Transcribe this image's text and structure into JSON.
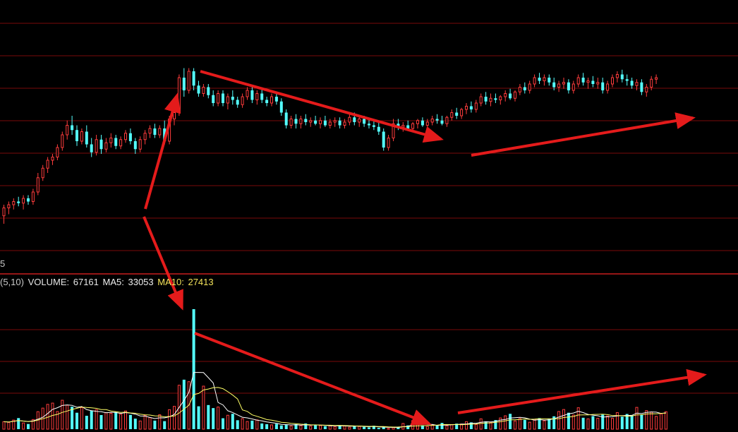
{
  "corner_label": "5",
  "volume_legend": {
    "params": "(5,10)",
    "volume_label": "VOLUME:",
    "volume_value": "67161",
    "ma5_label": "MA5:",
    "ma5_value": "33053",
    "ma10_label": "MA10:",
    "ma10_value": "27413"
  },
  "colors": {
    "background": "#000000",
    "up_candle": "#ff3c3c",
    "down_candle": "#54ffff",
    "grid": "#7a0a0a",
    "divider": "#c81e1e",
    "ma5_line": "#ffffff",
    "ma10_line": "#ffff66",
    "annotation_arrow": "#e41b1b"
  },
  "chart_data": [
    {
      "type": "candlestick",
      "panel": "price",
      "grid": true,
      "price_range": [
        4.4,
        6.0
      ],
      "candles": [
        {
          "o": 4.73,
          "h": 4.8,
          "l": 4.68,
          "c": 4.78
        },
        {
          "o": 4.78,
          "h": 4.82,
          "l": 4.74,
          "c": 4.8
        },
        {
          "o": 4.8,
          "h": 4.84,
          "l": 4.77,
          "c": 4.82
        },
        {
          "o": 4.82,
          "h": 4.85,
          "l": 4.79,
          "c": 4.81
        },
        {
          "o": 4.81,
          "h": 4.86,
          "l": 4.77,
          "c": 4.84
        },
        {
          "o": 4.84,
          "h": 4.86,
          "l": 4.8,
          "c": 4.82
        },
        {
          "o": 4.82,
          "h": 4.9,
          "l": 4.8,
          "c": 4.88
        },
        {
          "o": 4.88,
          "h": 5.0,
          "l": 4.86,
          "c": 4.97
        },
        {
          "o": 4.97,
          "h": 5.05,
          "l": 4.95,
          "c": 5.03
        },
        {
          "o": 5.03,
          "h": 5.1,
          "l": 5.0,
          "c": 5.08
        },
        {
          "o": 5.08,
          "h": 5.12,
          "l": 5.05,
          "c": 5.1
        },
        {
          "o": 5.1,
          "h": 5.18,
          "l": 5.08,
          "c": 5.16
        },
        {
          "o": 5.16,
          "h": 5.26,
          "l": 5.14,
          "c": 5.24
        },
        {
          "o": 5.24,
          "h": 5.33,
          "l": 5.21,
          "c": 5.3
        },
        {
          "o": 5.3,
          "h": 5.36,
          "l": 5.24,
          "c": 5.27
        },
        {
          "o": 5.27,
          "h": 5.3,
          "l": 5.17,
          "c": 5.2
        },
        {
          "o": 5.2,
          "h": 5.28,
          "l": 5.18,
          "c": 5.26
        },
        {
          "o": 5.26,
          "h": 5.3,
          "l": 5.16,
          "c": 5.18
        },
        {
          "o": 5.18,
          "h": 5.22,
          "l": 5.1,
          "c": 5.13
        },
        {
          "o": 5.13,
          "h": 5.24,
          "l": 5.11,
          "c": 5.21
        },
        {
          "o": 5.21,
          "h": 5.24,
          "l": 5.12,
          "c": 5.15
        },
        {
          "o": 5.15,
          "h": 5.22,
          "l": 5.13,
          "c": 5.19
        },
        {
          "o": 5.19,
          "h": 5.25,
          "l": 5.16,
          "c": 5.22
        },
        {
          "o": 5.22,
          "h": 5.24,
          "l": 5.15,
          "c": 5.17
        },
        {
          "o": 5.17,
          "h": 5.23,
          "l": 5.15,
          "c": 5.21
        },
        {
          "o": 5.21,
          "h": 5.27,
          "l": 5.19,
          "c": 5.25
        },
        {
          "o": 5.25,
          "h": 5.28,
          "l": 5.18,
          "c": 5.2
        },
        {
          "o": 5.2,
          "h": 5.22,
          "l": 5.12,
          "c": 5.15
        },
        {
          "o": 5.15,
          "h": 5.23,
          "l": 5.13,
          "c": 5.21
        },
        {
          "o": 5.21,
          "h": 5.27,
          "l": 5.18,
          "c": 5.25
        },
        {
          "o": 5.25,
          "h": 5.3,
          "l": 5.22,
          "c": 5.28
        },
        {
          "o": 5.28,
          "h": 5.31,
          "l": 5.22,
          "c": 5.24
        },
        {
          "o": 5.24,
          "h": 5.3,
          "l": 5.22,
          "c": 5.28
        },
        {
          "o": 5.28,
          "h": 5.33,
          "l": 5.18,
          "c": 5.2
        },
        {
          "o": 5.2,
          "h": 5.36,
          "l": 5.18,
          "c": 5.34
        },
        {
          "o": 5.34,
          "h": 5.4,
          "l": 5.3,
          "c": 5.38
        },
        {
          "o": 5.38,
          "h": 5.62,
          "l": 5.36,
          "c": 5.6
        },
        {
          "o": 5.6,
          "h": 5.66,
          "l": 5.48,
          "c": 5.52
        },
        {
          "o": 5.52,
          "h": 5.66,
          "l": 5.5,
          "c": 5.64
        },
        {
          "o": 5.64,
          "h": 5.66,
          "l": 5.52,
          "c": 5.55
        },
        {
          "o": 5.55,
          "h": 5.58,
          "l": 5.48,
          "c": 5.5
        },
        {
          "o": 5.5,
          "h": 5.56,
          "l": 5.48,
          "c": 5.54
        },
        {
          "o": 5.54,
          "h": 5.56,
          "l": 5.47,
          "c": 5.49
        },
        {
          "o": 5.49,
          "h": 5.52,
          "l": 5.42,
          "c": 5.44
        },
        {
          "o": 5.44,
          "h": 5.52,
          "l": 5.42,
          "c": 5.5
        },
        {
          "o": 5.5,
          "h": 5.52,
          "l": 5.42,
          "c": 5.44
        },
        {
          "o": 5.44,
          "h": 5.5,
          "l": 5.4,
          "c": 5.48
        },
        {
          "o": 5.48,
          "h": 5.52,
          "l": 5.43,
          "c": 5.46
        },
        {
          "o": 5.46,
          "h": 5.48,
          "l": 5.41,
          "c": 5.43
        },
        {
          "o": 5.43,
          "h": 5.5,
          "l": 5.41,
          "c": 5.48
        },
        {
          "o": 5.48,
          "h": 5.54,
          "l": 5.46,
          "c": 5.52
        },
        {
          "o": 5.52,
          "h": 5.54,
          "l": 5.44,
          "c": 5.46
        },
        {
          "o": 5.46,
          "h": 5.52,
          "l": 5.43,
          "c": 5.5
        },
        {
          "o": 5.5,
          "h": 5.54,
          "l": 5.44,
          "c": 5.46
        },
        {
          "o": 5.46,
          "h": 5.48,
          "l": 5.42,
          "c": 5.44
        },
        {
          "o": 5.44,
          "h": 5.5,
          "l": 5.42,
          "c": 5.48
        },
        {
          "o": 5.48,
          "h": 5.5,
          "l": 5.43,
          "c": 5.45
        },
        {
          "o": 5.45,
          "h": 5.47,
          "l": 5.36,
          "c": 5.38
        },
        {
          "o": 5.38,
          "h": 5.4,
          "l": 5.28,
          "c": 5.3
        },
        {
          "o": 5.3,
          "h": 5.36,
          "l": 5.28,
          "c": 5.34
        },
        {
          "o": 5.34,
          "h": 5.37,
          "l": 5.28,
          "c": 5.31
        },
        {
          "o": 5.31,
          "h": 5.36,
          "l": 5.28,
          "c": 5.34
        },
        {
          "o": 5.34,
          "h": 5.37,
          "l": 5.3,
          "c": 5.32
        },
        {
          "o": 5.32,
          "h": 5.35,
          "l": 5.29,
          "c": 5.33
        },
        {
          "o": 5.33,
          "h": 5.36,
          "l": 5.3,
          "c": 5.31
        },
        {
          "o": 5.31,
          "h": 5.35,
          "l": 5.28,
          "c": 5.33
        },
        {
          "o": 5.33,
          "h": 5.36,
          "l": 5.29,
          "c": 5.3
        },
        {
          "o": 5.3,
          "h": 5.34,
          "l": 5.28,
          "c": 5.32
        },
        {
          "o": 5.32,
          "h": 5.35,
          "l": 5.29,
          "c": 5.33
        },
        {
          "o": 5.33,
          "h": 5.35,
          "l": 5.28,
          "c": 5.3
        },
        {
          "o": 5.3,
          "h": 5.34,
          "l": 5.28,
          "c": 5.32
        },
        {
          "o": 5.32,
          "h": 5.37,
          "l": 5.3,
          "c": 5.35
        },
        {
          "o": 5.35,
          "h": 5.38,
          "l": 5.3,
          "c": 5.32
        },
        {
          "o": 5.32,
          "h": 5.36,
          "l": 5.29,
          "c": 5.34
        },
        {
          "o": 5.34,
          "h": 5.36,
          "l": 5.29,
          "c": 5.31
        },
        {
          "o": 5.31,
          "h": 5.34,
          "l": 5.28,
          "c": 5.3
        },
        {
          "o": 5.3,
          "h": 5.33,
          "l": 5.27,
          "c": 5.29
        },
        {
          "o": 5.29,
          "h": 5.32,
          "l": 5.24,
          "c": 5.26
        },
        {
          "o": 5.26,
          "h": 5.28,
          "l": 5.14,
          "c": 5.16
        },
        {
          "o": 5.16,
          "h": 5.24,
          "l": 5.14,
          "c": 5.22
        },
        {
          "o": 5.22,
          "h": 5.34,
          "l": 5.2,
          "c": 5.31
        },
        {
          "o": 5.31,
          "h": 5.34,
          "l": 5.27,
          "c": 5.29
        },
        {
          "o": 5.29,
          "h": 5.32,
          "l": 5.26,
          "c": 5.3
        },
        {
          "o": 5.3,
          "h": 5.33,
          "l": 5.27,
          "c": 5.28
        },
        {
          "o": 5.28,
          "h": 5.32,
          "l": 5.26,
          "c": 5.31
        },
        {
          "o": 5.31,
          "h": 5.34,
          "l": 5.28,
          "c": 5.33
        },
        {
          "o": 5.33,
          "h": 5.35,
          "l": 5.29,
          "c": 5.3
        },
        {
          "o": 5.3,
          "h": 5.34,
          "l": 5.28,
          "c": 5.32
        },
        {
          "o": 5.32,
          "h": 5.36,
          "l": 5.3,
          "c": 5.34
        },
        {
          "o": 5.34,
          "h": 5.37,
          "l": 5.31,
          "c": 5.33
        },
        {
          "o": 5.33,
          "h": 5.36,
          "l": 5.3,
          "c": 5.31
        },
        {
          "o": 5.31,
          "h": 5.36,
          "l": 5.29,
          "c": 5.35
        },
        {
          "o": 5.35,
          "h": 5.4,
          "l": 5.33,
          "c": 5.38
        },
        {
          "o": 5.38,
          "h": 5.41,
          "l": 5.34,
          "c": 5.36
        },
        {
          "o": 5.36,
          "h": 5.41,
          "l": 5.34,
          "c": 5.4
        },
        {
          "o": 5.4,
          "h": 5.44,
          "l": 5.37,
          "c": 5.42
        },
        {
          "o": 5.42,
          "h": 5.45,
          "l": 5.38,
          "c": 5.4
        },
        {
          "o": 5.4,
          "h": 5.46,
          "l": 5.38,
          "c": 5.44
        },
        {
          "o": 5.44,
          "h": 5.5,
          "l": 5.42,
          "c": 5.48
        },
        {
          "o": 5.48,
          "h": 5.51,
          "l": 5.43,
          "c": 5.45
        },
        {
          "o": 5.45,
          "h": 5.5,
          "l": 5.42,
          "c": 5.47
        },
        {
          "o": 5.47,
          "h": 5.5,
          "l": 5.44,
          "c": 5.46
        },
        {
          "o": 5.46,
          "h": 5.49,
          "l": 5.43,
          "c": 5.48
        },
        {
          "o": 5.48,
          "h": 5.52,
          "l": 5.45,
          "c": 5.5
        },
        {
          "o": 5.5,
          "h": 5.53,
          "l": 5.46,
          "c": 5.47
        },
        {
          "o": 5.47,
          "h": 5.52,
          "l": 5.45,
          "c": 5.51
        },
        {
          "o": 5.51,
          "h": 5.56,
          "l": 5.49,
          "c": 5.54
        },
        {
          "o": 5.54,
          "h": 5.57,
          "l": 5.5,
          "c": 5.52
        },
        {
          "o": 5.52,
          "h": 5.58,
          "l": 5.5,
          "c": 5.56
        },
        {
          "o": 5.56,
          "h": 5.62,
          "l": 5.54,
          "c": 5.6
        },
        {
          "o": 5.6,
          "h": 5.63,
          "l": 5.56,
          "c": 5.58
        },
        {
          "o": 5.58,
          "h": 5.62,
          "l": 5.55,
          "c": 5.6
        },
        {
          "o": 5.6,
          "h": 5.62,
          "l": 5.55,
          "c": 5.57
        },
        {
          "o": 5.57,
          "h": 5.6,
          "l": 5.52,
          "c": 5.54
        },
        {
          "o": 5.54,
          "h": 5.58,
          "l": 5.51,
          "c": 5.56
        },
        {
          "o": 5.56,
          "h": 5.6,
          "l": 5.53,
          "c": 5.57
        },
        {
          "o": 5.57,
          "h": 5.59,
          "l": 5.5,
          "c": 5.52
        },
        {
          "o": 5.52,
          "h": 5.58,
          "l": 5.5,
          "c": 5.56
        },
        {
          "o": 5.56,
          "h": 5.62,
          "l": 5.54,
          "c": 5.6
        },
        {
          "o": 5.6,
          "h": 5.63,
          "l": 5.55,
          "c": 5.57
        },
        {
          "o": 5.57,
          "h": 5.6,
          "l": 5.53,
          "c": 5.58
        },
        {
          "o": 5.58,
          "h": 5.61,
          "l": 5.54,
          "c": 5.56
        },
        {
          "o": 5.56,
          "h": 5.6,
          "l": 5.53,
          "c": 5.57
        },
        {
          "o": 5.57,
          "h": 5.6,
          "l": 5.5,
          "c": 5.52
        },
        {
          "o": 5.52,
          "h": 5.58,
          "l": 5.5,
          "c": 5.56
        },
        {
          "o": 5.56,
          "h": 5.62,
          "l": 5.54,
          "c": 5.6
        },
        {
          "o": 5.6,
          "h": 5.64,
          "l": 5.57,
          "c": 5.62
        },
        {
          "o": 5.62,
          "h": 5.65,
          "l": 5.57,
          "c": 5.59
        },
        {
          "o": 5.59,
          "h": 5.62,
          "l": 5.55,
          "c": 5.58
        },
        {
          "o": 5.58,
          "h": 5.6,
          "l": 5.53,
          "c": 5.55
        },
        {
          "o": 5.55,
          "h": 5.59,
          "l": 5.52,
          "c": 5.57
        },
        {
          "o": 5.57,
          "h": 5.59,
          "l": 5.49,
          "c": 5.51
        },
        {
          "o": 5.51,
          "h": 5.56,
          "l": 5.48,
          "c": 5.54
        },
        {
          "o": 5.54,
          "h": 5.61,
          "l": 5.52,
          "c": 5.59
        },
        {
          "o": 5.59,
          "h": 5.62,
          "l": 5.56,
          "c": 5.6
        }
      ]
    },
    {
      "type": "bar",
      "panel": "volume",
      "grid": true,
      "ylim": [
        0,
        67161
      ],
      "values": [
        4200,
        3800,
        5100,
        6200,
        3500,
        2900,
        5400,
        9800,
        11800,
        13900,
        14600,
        9900,
        16200,
        13400,
        12600,
        9200,
        12100,
        7500,
        10300,
        10900,
        7900,
        9300,
        8900,
        9600,
        8400,
        10200,
        8000,
        5900,
        4600,
        7800,
        6500,
        4800,
        8100,
        4500,
        10900,
        12800,
        24600,
        27700,
        26600,
        67161,
        12800,
        24100,
        13500,
        11800,
        12400,
        6100,
        7800,
        8600,
        5000,
        5900,
        4300,
        4800,
        5200,
        3200,
        2800,
        2400,
        3000,
        2100,
        2600,
        1800,
        2800,
        2000,
        3200,
        1700,
        2300,
        2000,
        1700,
        1900,
        1400,
        2200,
        1800,
        1100,
        2000,
        1500,
        1300,
        1000,
        1900,
        700,
        1100,
        400,
        900,
        1400,
        3200,
        2100,
        4800,
        2600,
        2200,
        1500,
        2400,
        2000,
        3500,
        1900,
        2600,
        3100,
        2900,
        4200,
        3800,
        2600,
        5800,
        4400,
        3800,
        5100,
        6300,
        7500,
        8600,
        4600,
        6000,
        5200,
        3900,
        5500,
        6200,
        4700,
        5700,
        7200,
        9900,
        11000,
        9200,
        7900,
        12000,
        6400,
        5800,
        7300,
        6100,
        8100,
        7400,
        6100,
        9300,
        7000,
        8500,
        7800,
        12200,
        8200,
        10400,
        9600,
        7200,
        8600,
        9800
      ],
      "ma5_value": 33053,
      "ma10_value": 27413
    }
  ]
}
